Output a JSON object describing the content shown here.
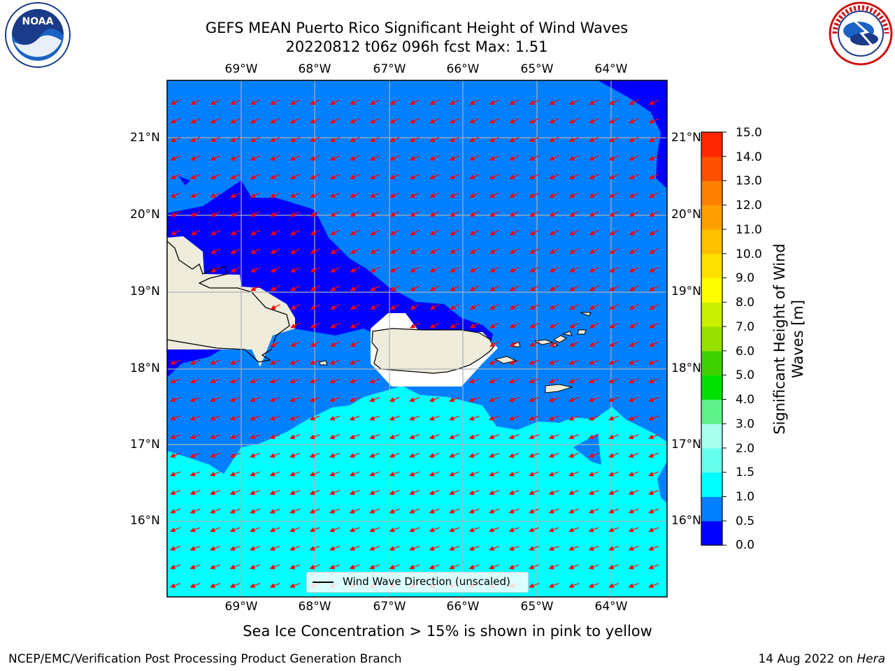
{
  "header": {
    "title_line1": "GEFS MEAN Puerto Rico Significant Height of Wind Waves",
    "title_line2": "20220812 t06z 096h fcst   Max: 1.51"
  },
  "logos": {
    "left": "NOAA",
    "right": "NATIONAL WEATHER SERVICE"
  },
  "map": {
    "lat_labels": [
      "21°N",
      "20°N",
      "19°N",
      "18°N",
      "17°N",
      "16°N"
    ],
    "lon_labels": [
      "69°W",
      "68°W",
      "67°W",
      "66°W",
      "65°W",
      "64°W"
    ],
    "legend_label": "Wind Wave Direction (unscaled)",
    "arrow_color": "#ff0000",
    "land_color": "#efecdc"
  },
  "colorbar": {
    "ticks": [
      "15.0",
      "14.0",
      "13.0",
      "12.0",
      "11.0",
      "10.0",
      "9.0",
      "8.0",
      "7.0",
      "6.0",
      "5.0",
      "4.0",
      "3.0",
      "2.0",
      "1.5",
      "1.0",
      "0.5",
      "0.0"
    ],
    "colors_bottom_to_top": [
      "#0000ff",
      "#0080ff",
      "#00ffff",
      "#66ffee",
      "#aaffee",
      "#5ff28a",
      "#00e000",
      "#40d000",
      "#98e000",
      "#c8f000",
      "#ffff00",
      "#ffe000",
      "#ffc000",
      "#ffa000",
      "#ff8000",
      "#ff5000",
      "#ff2800"
    ],
    "label": "Significant Height of Wind Waves [m]"
  },
  "notes": {
    "ice_note": "Sea Ice Concentration > 15% is shown in pink to yellow"
  },
  "footer": {
    "left": "NCEP/EMC/Verification Post Processing Product Generation Branch",
    "right_date": "14 Aug 2022 on",
    "right_host": "Hera"
  }
}
